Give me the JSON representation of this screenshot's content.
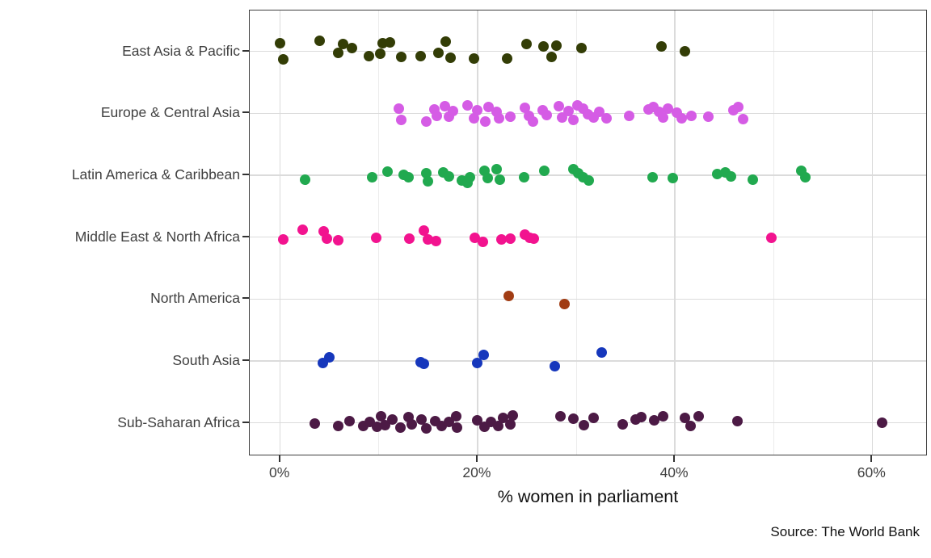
{
  "caption": "Source: The World Bank",
  "chart_data": {
    "type": "scatter",
    "subtype": "jittered-strip-plot",
    "title": "",
    "xlabel": "% women in parliament",
    "ylabel": "",
    "legend": "none",
    "grid": "on",
    "x_range": [
      -3.1,
      65.6
    ],
    "x_ticks": [
      {
        "value": 0,
        "label": "0%"
      },
      {
        "value": 20,
        "label": "20%"
      },
      {
        "value": 40,
        "label": "40%"
      },
      {
        "value": 60,
        "label": "60%"
      }
    ],
    "x_minor_gridlines": [
      10,
      30,
      50
    ],
    "categories": [
      "East Asia & Pacific",
      "Europe & Central Asia",
      "Latin America & Caribbean",
      "Middle East & North Africa",
      "North America",
      "South Asia",
      "Sub-Saharan Africa"
    ],
    "series": [
      {
        "name": "East Asia & Pacific",
        "color": "#333D06",
        "values": [
          0,
          0.3,
          4.0,
          5.9,
          6.4,
          7.3,
          9.0,
          10.1,
          10.4,
          11.1,
          12.3,
          14.2,
          16.0,
          16.8,
          17.3,
          19.6,
          23.0,
          25.0,
          26.7,
          27.5,
          28.0,
          30.5,
          38.6,
          41.0
        ],
        "jitter": [
          -10,
          10,
          -13,
          2,
          -9,
          -4,
          6,
          3,
          -10,
          -11,
          7,
          6,
          2,
          -12,
          8,
          9,
          9,
          -9,
          -6,
          7,
          -7,
          -4,
          -6,
          0
        ]
      },
      {
        "name": "Europe & Central Asia",
        "color": "#D55CE5",
        "values": [
          12.0,
          12.3,
          14.8,
          15.6,
          15.9,
          16.7,
          17.1,
          17.5,
          19.0,
          19.6,
          20.0,
          20.8,
          21.1,
          21.9,
          22.2,
          23.3,
          24.8,
          25.2,
          25.6,
          26.6,
          27.0,
          28.2,
          28.6,
          29.2,
          29.7,
          30.1,
          30.7,
          31.2,
          31.8,
          32.3,
          33.1,
          35.4,
          37.3,
          37.8,
          38.4,
          38.8,
          39.3,
          40.2,
          40.7,
          41.7,
          43.4,
          45.9,
          46.4,
          46.9
        ],
        "jitter": [
          -6,
          8,
          10,
          -5,
          3,
          -9,
          4,
          -3,
          -10,
          6,
          -4,
          10,
          -8,
          -2,
          6,
          4,
          -7,
          3,
          10,
          -4,
          2,
          -9,
          5,
          -3,
          8,
          -10,
          -6,
          1,
          5,
          -2,
          6,
          3,
          -5,
          -8,
          -2,
          5,
          -6,
          -1,
          6,
          3,
          4,
          -4,
          -8,
          7
        ]
      },
      {
        "name": "Latin America & Caribbean",
        "color": "#21A94F",
        "values": [
          2.5,
          9.3,
          10.9,
          12.5,
          13.0,
          14.8,
          15.0,
          16.5,
          17.1,
          18.4,
          19.0,
          19.2,
          20.7,
          21.0,
          21.9,
          22.3,
          24.7,
          26.8,
          29.7,
          30.2,
          30.7,
          31.3,
          37.7,
          39.8,
          44.3,
          45.1,
          45.7,
          47.9,
          52.8,
          53.2
        ],
        "jitter": [
          5,
          2,
          -5,
          -1,
          2,
          -3,
          7,
          -4,
          1,
          6,
          9,
          2,
          -6,
          3,
          -8,
          5,
          2,
          -6,
          -8,
          -3,
          2,
          6,
          2,
          3,
          -2,
          -4,
          1,
          5,
          -6,
          2
        ]
      },
      {
        "name": "Middle East & North Africa",
        "color": "#F2138F",
        "values": [
          0.3,
          2.3,
          4.4,
          4.7,
          5.9,
          9.7,
          13.1,
          14.6,
          15.0,
          15.8,
          19.7,
          20.5,
          22.4,
          23.3,
          24.8,
          25.3,
          25.7,
          49.8
        ],
        "jitter": [
          3,
          -9,
          -7,
          2,
          4,
          1,
          2,
          -8,
          3,
          5,
          1,
          6,
          3,
          2,
          -3,
          1,
          2,
          1
        ]
      },
      {
        "name": "North America",
        "color": "#A13C13",
        "values": [
          23.2,
          28.8
        ],
        "jitter": [
          -4,
          6
        ]
      },
      {
        "name": "South Asia",
        "color": "#1637BC",
        "values": [
          4.3,
          5.0,
          14.2,
          14.6,
          20.0,
          20.6,
          27.8,
          32.6
        ],
        "jitter": [
          3,
          -4,
          2,
          4,
          3,
          -7,
          7,
          -10
        ]
      },
      {
        "name": "Sub-Saharan Africa",
        "color": "#4C1A45",
        "values": [
          3.5,
          5.9,
          7.0,
          8.4,
          9.1,
          9.8,
          10.2,
          10.6,
          11.4,
          12.2,
          13.0,
          13.3,
          14.3,
          14.8,
          15.7,
          16.4,
          17.1,
          17.8,
          17.9,
          20.0,
          20.7,
          21.4,
          22.1,
          22.6,
          23.3,
          23.6,
          28.4,
          29.7,
          30.8,
          31.8,
          34.7,
          36.0,
          36.6,
          37.9,
          38.8,
          41.0,
          41.6,
          42.4,
          46.3,
          61.0
        ],
        "jitter": [
          1,
          4,
          -2,
          4,
          -1,
          5,
          -8,
          3,
          -4,
          6,
          -7,
          2,
          -4,
          7,
          -2,
          4,
          -1,
          -8,
          6,
          -3,
          5,
          -1,
          4,
          -6,
          2,
          -9,
          -8,
          -5,
          3,
          -6,
          2,
          -4,
          -7,
          -3,
          -8,
          -6,
          4,
          -8,
          -2,
          0
        ]
      }
    ]
  }
}
